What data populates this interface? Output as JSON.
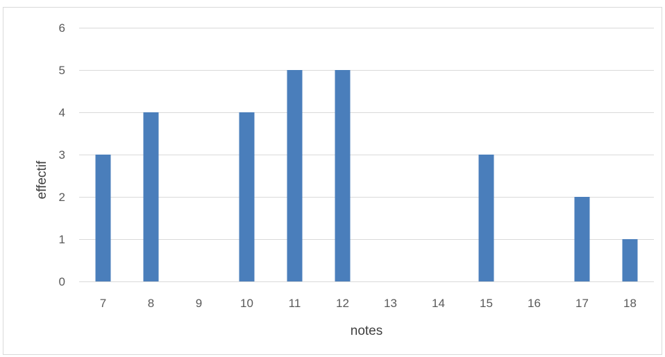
{
  "chart_data": {
    "type": "bar",
    "title": "",
    "xlabel": "notes",
    "ylabel": "effectif",
    "categories": [
      "7",
      "8",
      "9",
      "10",
      "11",
      "12",
      "13",
      "14",
      "15",
      "16",
      "17",
      "18"
    ],
    "values": [
      3,
      4,
      0,
      4,
      5,
      5,
      0,
      0,
      3,
      0,
      2,
      1
    ],
    "ylim": [
      0,
      6
    ],
    "yticks": [
      0,
      1,
      2,
      3,
      4,
      5,
      6
    ],
    "grid": true,
    "legend": "none",
    "bar_color": "#4a7ebb",
    "grid_color": "#d9d9d9"
  }
}
